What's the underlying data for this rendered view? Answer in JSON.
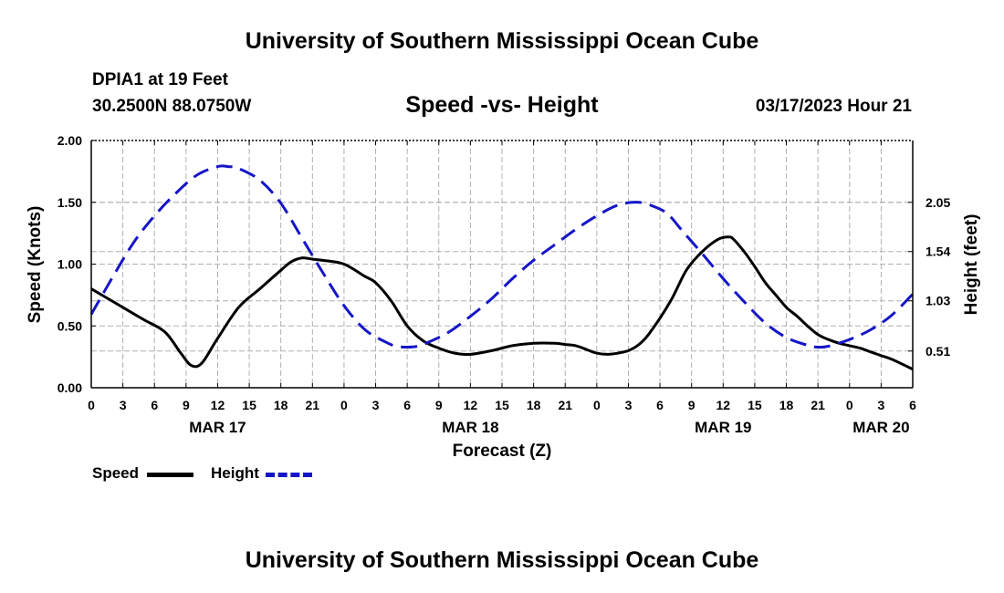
{
  "header": {
    "title": "University of Southern Mississippi Ocean Cube",
    "station": "DPIA1 at 19 Feet",
    "coords": "30.2500N  88.0750W",
    "subtitle": "Speed -vs- Height",
    "datetime": "03/17/2023 Hour 21"
  },
  "footer": {
    "title": "University of Southern Mississippi Ocean Cube"
  },
  "legend": {
    "speed_label": "Speed",
    "height_label": "Height"
  },
  "colors": {
    "speed": "#000000",
    "height": "#1515c8",
    "grid": "#b0b0b0"
  },
  "chart_data": {
    "type": "line",
    "title": "Speed -vs- Height",
    "xlabel": "Forecast (Z)",
    "ylabel": "Speed (Knots)",
    "y2label": "Height (feet)",
    "ylim": [
      0,
      2
    ],
    "y2lim": [
      0.13,
      2.69
    ],
    "xlim_hours": [
      0,
      78
    ],
    "xtick_labels": [
      "0",
      "3",
      "6",
      "9",
      "12",
      "15",
      "18",
      "21",
      "0",
      "3",
      "6",
      "9",
      "12",
      "15",
      "18",
      "21",
      "0",
      "3",
      "6",
      "9",
      "12",
      "15",
      "18",
      "21",
      "0",
      "3",
      "6"
    ],
    "ytick_labels": [
      "0.00",
      "0.50",
      "1.00",
      "1.50",
      "2.00"
    ],
    "ytick_values": [
      0,
      0.5,
      1.0,
      1.5,
      2.0
    ],
    "y2tick_labels": [
      "0.51",
      "1.03",
      "1.54",
      "2.05"
    ],
    "y2tick_values": [
      0.51,
      1.03,
      1.54,
      2.05
    ],
    "date_labels": [
      {
        "label": "MAR 17",
        "hour": 12
      },
      {
        "label": "MAR 18",
        "hour": 36
      },
      {
        "label": "MAR 19",
        "hour": 60
      },
      {
        "label": "MAR 20",
        "hour": 75
      }
    ],
    "series": [
      {
        "name": "Speed",
        "axis": "left",
        "style": "solid",
        "x": [
          0,
          3,
          5,
          7,
          8.5,
          9.5,
          10.5,
          12,
          14,
          16,
          18,
          19,
          20,
          21,
          22,
          24,
          26,
          27,
          28.5,
          30,
          31.5,
          33,
          34.5,
          36,
          38,
          40,
          42,
          44,
          45,
          46,
          47,
          48,
          49,
          50,
          51,
          52,
          53,
          55,
          56.5,
          58,
          59.5,
          60.5,
          61,
          62,
          63,
          64,
          65,
          66,
          67,
          68,
          69,
          70,
          71,
          72,
          73,
          74,
          75,
          76,
          78
        ],
        "values": [
          0.8,
          0.65,
          0.55,
          0.45,
          0.28,
          0.18,
          0.2,
          0.4,
          0.65,
          0.8,
          0.95,
          1.02,
          1.05,
          1.04,
          1.03,
          1.0,
          0.9,
          0.85,
          0.7,
          0.5,
          0.38,
          0.32,
          0.28,
          0.27,
          0.3,
          0.34,
          0.36,
          0.36,
          0.35,
          0.34,
          0.31,
          0.28,
          0.27,
          0.28,
          0.3,
          0.35,
          0.44,
          0.7,
          0.95,
          1.1,
          1.2,
          1.22,
          1.2,
          1.1,
          0.98,
          0.85,
          0.75,
          0.65,
          0.58,
          0.5,
          0.43,
          0.39,
          0.36,
          0.34,
          0.32,
          0.29,
          0.26,
          0.23,
          0.15
        ]
      },
      {
        "name": "Height",
        "axis": "right",
        "style": "dashed",
        "x": [
          0,
          2,
          4,
          6,
          8,
          10,
          12,
          13,
          14,
          16,
          18,
          20,
          21,
          22,
          24,
          26,
          28,
          29,
          30,
          31,
          32,
          34,
          36,
          38,
          40,
          42,
          44,
          46,
          48,
          50,
          52,
          54,
          55,
          56,
          58,
          60,
          62,
          64,
          66,
          68,
          69,
          70,
          72,
          74,
          76,
          78
        ],
        "values": [
          0.89,
          1.27,
          1.63,
          1.91,
          2.14,
          2.33,
          2.42,
          2.42,
          2.4,
          2.28,
          2.04,
          1.68,
          1.5,
          1.32,
          0.98,
          0.73,
          0.6,
          0.56,
          0.55,
          0.56,
          0.6,
          0.71,
          0.87,
          1.05,
          1.26,
          1.45,
          1.61,
          1.77,
          1.91,
          2.02,
          2.05,
          1.98,
          1.9,
          1.77,
          1.52,
          1.26,
          1.02,
          0.8,
          0.65,
          0.57,
          0.55,
          0.56,
          0.63,
          0.73,
          0.88,
          1.1
        ]
      }
    ]
  }
}
